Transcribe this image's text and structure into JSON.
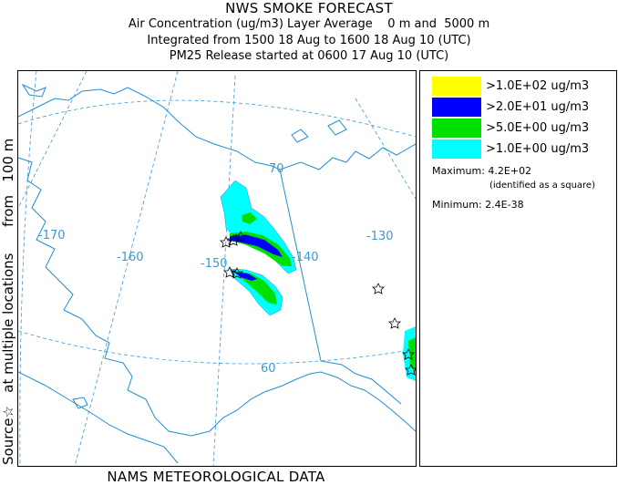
{
  "header": {
    "title": "NWS SMOKE FORECAST",
    "line1": "Air Concentration (ug/m3) Layer Average    0 m and  5000 m",
    "line2": "Integrated from 1500 18 Aug to 1600 18 Aug 10 (UTC)",
    "line3": "PM25 Release started at 0600 17 Aug 10 (UTC)"
  },
  "side_label": "Source☆   at multiple locations      from   100 m",
  "footer": "NAMS METEOROLOGICAL DATA",
  "map": {
    "meridian_labels": [
      "-170",
      "-160",
      "-150",
      "-140",
      "-130"
    ],
    "parallel_labels": [
      "70",
      "60"
    ],
    "colors": {
      "coast": "#1e8fd0",
      "grid": "#3a9ad6",
      "label": "#3a9ad6"
    }
  },
  "legend": {
    "items": [
      {
        "label": ">1.0E+02 ug/m3",
        "color": "#ffff00"
      },
      {
        "label": ">2.0E+01 ug/m3",
        "color": "#0000ff"
      },
      {
        "label": ">5.0E+00 ug/m3",
        "color": "#00e000"
      },
      {
        "label": ">1.0E+00 ug/m3",
        "color": "#00ffff"
      }
    ],
    "maximum": "Maximum: 4.2E+02",
    "max_note": "(identified as a square)",
    "minimum": "Minimum: 2.4E-38"
  }
}
